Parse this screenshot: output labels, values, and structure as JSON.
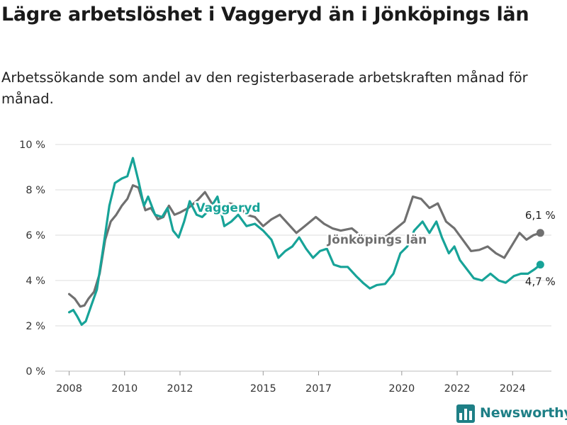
{
  "title": "Lägre arbetslöshet i Vaggeryd än i Jönköpings län",
  "subtitle": "Arbetssökande som andel av den registerbaserade arbetskraften månad för månad.",
  "brand": {
    "name": "Newsworthy",
    "icon": "bar-chart-logo-icon"
  },
  "chart_data": {
    "type": "line",
    "title": "Lägre arbetslöshet i Vaggeryd än i Jönköpings län",
    "subtitle": "Arbetssökande som andel av den registerbaserade arbetskraften månad för månad.",
    "xlabel": "",
    "ylabel": "",
    "xlim": [
      2007.5,
      2025.4
    ],
    "ylim": [
      0,
      10
    ],
    "x_ticks": [
      2008,
      2010,
      2012,
      2015,
      2017,
      2020,
      2022,
      2024
    ],
    "y_ticks": [
      {
        "value": 0,
        "label": "0 %"
      },
      {
        "value": 2,
        "label": "2 %"
      },
      {
        "value": 4,
        "label": "4 %"
      },
      {
        "value": 6,
        "label": "6 %"
      },
      {
        "value": 8,
        "label": "8 %"
      },
      {
        "value": 10,
        "label": "10 %"
      }
    ],
    "grid": "horizontal",
    "legend": "direct labels on lines",
    "series": [
      {
        "name": "Jönköpings län",
        "color": "#707070",
        "end_label": "6,1 %",
        "points": [
          [
            2008.0,
            3.4
          ],
          [
            2008.2,
            3.2
          ],
          [
            2008.4,
            2.85
          ],
          [
            2008.55,
            2.9
          ],
          [
            2008.7,
            3.2
          ],
          [
            2008.9,
            3.5
          ],
          [
            2009.1,
            4.3
          ],
          [
            2009.3,
            5.8
          ],
          [
            2009.5,
            6.6
          ],
          [
            2009.7,
            6.9
          ],
          [
            2009.9,
            7.3
          ],
          [
            2010.1,
            7.6
          ],
          [
            2010.3,
            8.2
          ],
          [
            2010.5,
            8.1
          ],
          [
            2010.75,
            7.1
          ],
          [
            2010.95,
            7.2
          ],
          [
            2011.2,
            6.7
          ],
          [
            2011.4,
            6.8
          ],
          [
            2011.6,
            7.3
          ],
          [
            2011.8,
            6.9
          ],
          [
            2012.0,
            7.0
          ],
          [
            2012.3,
            7.2
          ],
          [
            2012.6,
            7.5
          ],
          [
            2012.9,
            7.9
          ],
          [
            2013.2,
            7.3
          ],
          [
            2013.5,
            7.1
          ],
          [
            2013.8,
            7.4
          ],
          [
            2014.1,
            7.3
          ],
          [
            2014.4,
            6.9
          ],
          [
            2014.7,
            6.8
          ],
          [
            2015.0,
            6.4
          ],
          [
            2015.3,
            6.7
          ],
          [
            2015.6,
            6.9
          ],
          [
            2015.9,
            6.5
          ],
          [
            2016.2,
            6.1
          ],
          [
            2016.5,
            6.4
          ],
          [
            2016.9,
            6.8
          ],
          [
            2017.2,
            6.5
          ],
          [
            2017.5,
            6.3
          ],
          [
            2017.8,
            6.2
          ],
          [
            2018.2,
            6.3
          ],
          [
            2018.5,
            6.0
          ],
          [
            2018.9,
            5.9
          ],
          [
            2019.2,
            5.8
          ],
          [
            2019.5,
            6.0
          ],
          [
            2019.8,
            6.3
          ],
          [
            2020.1,
            6.6
          ],
          [
            2020.4,
            7.7
          ],
          [
            2020.7,
            7.6
          ],
          [
            2021.0,
            7.2
          ],
          [
            2021.3,
            7.4
          ],
          [
            2021.6,
            6.6
          ],
          [
            2021.9,
            6.3
          ],
          [
            2022.2,
            5.8
          ],
          [
            2022.5,
            5.3
          ],
          [
            2022.8,
            5.35
          ],
          [
            2023.1,
            5.5
          ],
          [
            2023.4,
            5.2
          ],
          [
            2023.7,
            5.0
          ],
          [
            2024.0,
            5.6
          ],
          [
            2024.25,
            6.1
          ],
          [
            2024.5,
            5.8
          ],
          [
            2024.75,
            6.0
          ],
          [
            2025.0,
            6.1
          ]
        ]
      },
      {
        "name": "Vaggeryd",
        "color": "#17a398",
        "end_label": "4,7 %",
        "points": [
          [
            2008.0,
            2.6
          ],
          [
            2008.15,
            2.7
          ],
          [
            2008.3,
            2.4
          ],
          [
            2008.45,
            2.05
          ],
          [
            2008.6,
            2.2
          ],
          [
            2008.8,
            2.9
          ],
          [
            2009.0,
            3.6
          ],
          [
            2009.2,
            5.2
          ],
          [
            2009.45,
            7.3
          ],
          [
            2009.65,
            8.3
          ],
          [
            2009.9,
            8.5
          ],
          [
            2010.1,
            8.6
          ],
          [
            2010.3,
            9.4
          ],
          [
            2010.5,
            8.4
          ],
          [
            2010.7,
            7.3
          ],
          [
            2010.85,
            7.7
          ],
          [
            2011.1,
            6.9
          ],
          [
            2011.35,
            6.8
          ],
          [
            2011.55,
            7.2
          ],
          [
            2011.75,
            6.2
          ],
          [
            2011.95,
            5.9
          ],
          [
            2012.15,
            6.6
          ],
          [
            2012.35,
            7.5
          ],
          [
            2012.6,
            6.9
          ],
          [
            2012.8,
            6.8
          ],
          [
            2013.05,
            7.1
          ],
          [
            2013.35,
            7.7
          ],
          [
            2013.6,
            6.4
          ],
          [
            2013.85,
            6.6
          ],
          [
            2014.1,
            6.9
          ],
          [
            2014.4,
            6.4
          ],
          [
            2014.7,
            6.5
          ],
          [
            2015.0,
            6.2
          ],
          [
            2015.3,
            5.8
          ],
          [
            2015.55,
            5.0
          ],
          [
            2015.8,
            5.3
          ],
          [
            2016.05,
            5.5
          ],
          [
            2016.3,
            5.9
          ],
          [
            2016.55,
            5.4
          ],
          [
            2016.8,
            5.0
          ],
          [
            2017.05,
            5.3
          ],
          [
            2017.3,
            5.4
          ],
          [
            2017.55,
            4.7
          ],
          [
            2017.8,
            4.6
          ],
          [
            2018.05,
            4.6
          ],
          [
            2018.35,
            4.2
          ],
          [
            2018.6,
            3.9
          ],
          [
            2018.85,
            3.65
          ],
          [
            2019.1,
            3.8
          ],
          [
            2019.4,
            3.85
          ],
          [
            2019.7,
            4.3
          ],
          [
            2019.95,
            5.2
          ],
          [
            2020.2,
            5.5
          ],
          [
            2020.45,
            6.2
          ],
          [
            2020.75,
            6.6
          ],
          [
            2021.0,
            6.1
          ],
          [
            2021.25,
            6.6
          ],
          [
            2021.45,
            5.9
          ],
          [
            2021.7,
            5.2
          ],
          [
            2021.9,
            5.5
          ],
          [
            2022.1,
            4.9
          ],
          [
            2022.35,
            4.5
          ],
          [
            2022.6,
            4.1
          ],
          [
            2022.9,
            4.0
          ],
          [
            2023.2,
            4.3
          ],
          [
            2023.5,
            4.0
          ],
          [
            2023.75,
            3.9
          ],
          [
            2024.05,
            4.2
          ],
          [
            2024.3,
            4.3
          ],
          [
            2024.55,
            4.3
          ],
          [
            2024.8,
            4.5
          ],
          [
            2025.0,
            4.7
          ]
        ]
      }
    ]
  }
}
